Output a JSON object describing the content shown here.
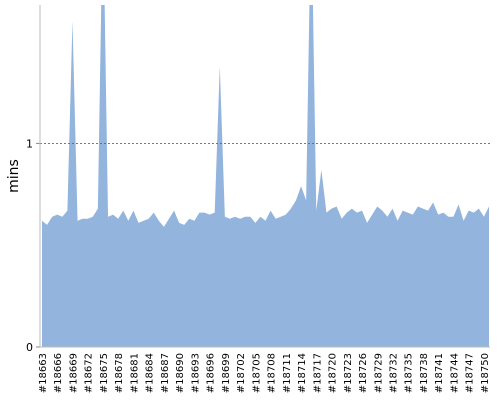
{
  "chart_data": {
    "type": "area",
    "y_label": "mins",
    "categories": [
      "#18663",
      null,
      null,
      "#18666",
      null,
      null,
      "#18669",
      null,
      null,
      "#18672",
      null,
      null,
      "#18675",
      null,
      null,
      "#18678",
      null,
      null,
      "#18681",
      null,
      null,
      "#18684",
      null,
      null,
      "#18687",
      null,
      null,
      "#18690",
      null,
      null,
      "#18693",
      null,
      null,
      "#18696",
      null,
      null,
      "#18699",
      null,
      null,
      "#18702",
      null,
      null,
      "#18705",
      null,
      null,
      "#18708",
      null,
      null,
      "#18711",
      null,
      null,
      "#18714",
      null,
      null,
      "#18717",
      null,
      null,
      "#18720",
      null,
      null,
      "#18723",
      null,
      null,
      "#18726",
      null,
      null,
      "#18729",
      null,
      null,
      "#18732",
      null,
      null,
      "#18735",
      null,
      null,
      "#18738",
      null,
      null,
      "#18741",
      null,
      null,
      "#18744",
      null,
      null,
      "#18747",
      null,
      null,
      "#18750",
      null
    ],
    "values": [
      0.62,
      0.6,
      0.64,
      0.65,
      0.64,
      0.67,
      1.6,
      0.62,
      0.63,
      0.63,
      0.64,
      0.68,
      2.2,
      0.64,
      0.65,
      0.63,
      0.67,
      0.62,
      0.67,
      0.61,
      0.62,
      0.63,
      0.66,
      0.62,
      0.59,
      0.63,
      0.67,
      0.61,
      0.6,
      0.63,
      0.62,
      0.66,
      0.66,
      0.65,
      0.66,
      1.38,
      0.64,
      0.63,
      0.64,
      0.63,
      0.64,
      0.64,
      0.61,
      0.64,
      0.62,
      0.67,
      0.63,
      0.64,
      0.65,
      0.68,
      0.72,
      0.79,
      0.72,
      2.2,
      0.67,
      0.87,
      0.66,
      0.68,
      0.69,
      0.63,
      0.66,
      0.68,
      0.66,
      0.67,
      0.61,
      0.65,
      0.69,
      0.67,
      0.64,
      0.68,
      0.62,
      0.67,
      0.66,
      0.65,
      0.69,
      0.68,
      0.67,
      0.71,
      0.65,
      0.66,
      0.64,
      0.64,
      0.7,
      0.62,
      0.67,
      0.66,
      0.68,
      0.64,
      0.69
    ],
    "color": "#92b4dd",
    "ylim": [
      0,
      1.68
    ],
    "yticks": [
      0,
      1
    ],
    "grid": true
  }
}
